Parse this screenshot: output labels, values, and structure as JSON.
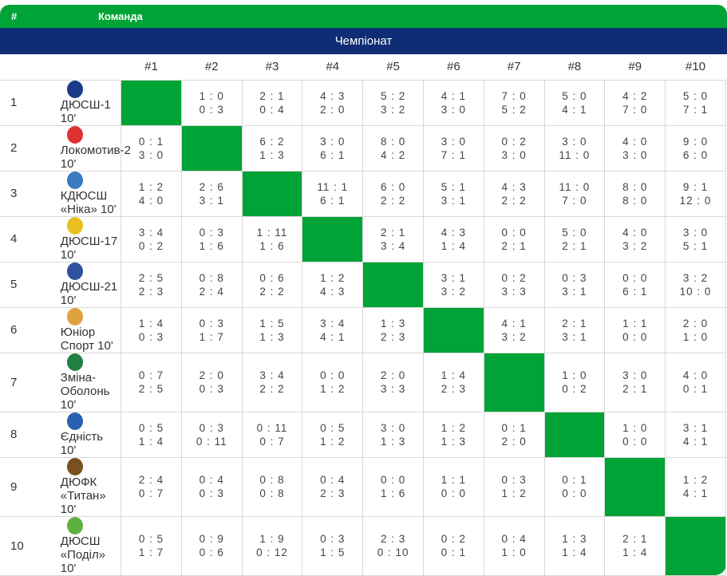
{
  "header": {
    "hash": "#",
    "team": "Команда"
  },
  "section": "Чемпіонат",
  "columns": [
    "#1",
    "#2",
    "#3",
    "#4",
    "#5",
    "#6",
    "#7",
    "#8",
    "#9",
    "#10"
  ],
  "colors": {
    "green": "#00a335",
    "navy": "#0e2d74"
  },
  "rows": [
    {
      "pos": "1",
      "team": "ДЮСШ-1 10'",
      "logo": "#1a3a8a",
      "scores": [
        null,
        [
          "1 : 0",
          "0 : 3"
        ],
        [
          "2 : 1",
          "0 : 4"
        ],
        [
          "4 : 3",
          "2 : 0"
        ],
        [
          "5 : 2",
          "3 : 2"
        ],
        [
          "4 : 1",
          "3 : 0"
        ],
        [
          "7 : 0",
          "5 : 2"
        ],
        [
          "5 : 0",
          "4 : 1"
        ],
        [
          "4 : 2",
          "7 : 0"
        ],
        [
          "5 : 0",
          "7 : 1"
        ]
      ]
    },
    {
      "pos": "2",
      "team": "Локомотив-2 10'",
      "logo": "#e03030",
      "scores": [
        [
          "0 : 1",
          "3 : 0"
        ],
        null,
        [
          "6 : 2",
          "1 : 3"
        ],
        [
          "3 : 0",
          "6 : 1"
        ],
        [
          "8 : 0",
          "4 : 2"
        ],
        [
          "3 : 0",
          "7 : 1"
        ],
        [
          "0 : 2",
          "3 : 0"
        ],
        [
          "3 : 0",
          "11 : 0"
        ],
        [
          "4 : 0",
          "3 : 0"
        ],
        [
          "9 : 0",
          "6 : 0"
        ]
      ]
    },
    {
      "pos": "3",
      "team": "КДЮСШ «Ніка» 10'",
      "logo": "#3a7ac0",
      "scores": [
        [
          "1 : 2",
          "4 : 0"
        ],
        [
          "2 : 6",
          "3 : 1"
        ],
        null,
        [
          "11 : 1",
          "6 : 1"
        ],
        [
          "6 : 0",
          "2 : 2"
        ],
        [
          "5 : 1",
          "3 : 1"
        ],
        [
          "4 : 3",
          "2 : 2"
        ],
        [
          "11 : 0",
          "7 : 0"
        ],
        [
          "8 : 0",
          "8 : 0"
        ],
        [
          "9 : 1",
          "12 : 0"
        ]
      ]
    },
    {
      "pos": "4",
      "team": "ДЮСШ-17 10'",
      "logo": "#e8c020",
      "scores": [
        [
          "3 : 4",
          "0 : 2"
        ],
        [
          "0 : 3",
          "1 : 6"
        ],
        [
          "1 : 11",
          "1 : 6"
        ],
        null,
        [
          "2 : 1",
          "3 : 4"
        ],
        [
          "4 : 3",
          "1 : 4"
        ],
        [
          "0 : 0",
          "2 : 1"
        ],
        [
          "5 : 0",
          "2 : 1"
        ],
        [
          "4 : 0",
          "3 : 2"
        ],
        [
          "3 : 0",
          "5 : 1"
        ]
      ]
    },
    {
      "pos": "5",
      "team": "ДЮСШ-21 10'",
      "logo": "#3050a0",
      "scores": [
        [
          "2 : 5",
          "2 : 3"
        ],
        [
          "0 : 8",
          "2 : 4"
        ],
        [
          "0 : 6",
          "2 : 2"
        ],
        [
          "1 : 2",
          "4 : 3"
        ],
        null,
        [
          "3 : 1",
          "3 : 2"
        ],
        [
          "0 : 2",
          "3 : 3"
        ],
        [
          "0 : 3",
          "3 : 1"
        ],
        [
          "0 : 0",
          "6 : 1"
        ],
        [
          "3 : 2",
          "10 : 0"
        ]
      ]
    },
    {
      "pos": "6",
      "team": "Юніор Спорт 10'",
      "logo": "#e0a040",
      "scores": [
        [
          "1 : 4",
          "0 : 3"
        ],
        [
          "0 : 3",
          "1 : 7"
        ],
        [
          "1 : 5",
          "1 : 3"
        ],
        [
          "3 : 4",
          "4 : 1"
        ],
        [
          "1 : 3",
          "2 : 3"
        ],
        null,
        [
          "4 : 1",
          "3 : 2"
        ],
        [
          "2 : 1",
          "3 : 1"
        ],
        [
          "1 : 1",
          "0 : 0"
        ],
        [
          "2 : 0",
          "1 : 0"
        ]
      ]
    },
    {
      "pos": "7",
      "team": "Зміна-Оболонь 10'",
      "logo": "#208040",
      "scores": [
        [
          "0 : 7",
          "2 : 5"
        ],
        [
          "2 : 0",
          "0 : 3"
        ],
        [
          "3 : 4",
          "2 : 2"
        ],
        [
          "0 : 0",
          "1 : 2"
        ],
        [
          "2 : 0",
          "3 : 3"
        ],
        [
          "1 : 4",
          "2 : 3"
        ],
        null,
        [
          "1 : 0",
          "0 : 2"
        ],
        [
          "3 : 0",
          "2 : 1"
        ],
        [
          "4 : 0",
          "0 : 1"
        ]
      ]
    },
    {
      "pos": "8",
      "team": "Єдність 10'",
      "logo": "#2a60b0",
      "scores": [
        [
          "0 : 5",
          "1 : 4"
        ],
        [
          "0 : 3",
          "0 : 11"
        ],
        [
          "0 : 11",
          "0 : 7"
        ],
        [
          "0 : 5",
          "1 : 2"
        ],
        [
          "3 : 0",
          "1 : 3"
        ],
        [
          "1 : 2",
          "1 : 3"
        ],
        [
          "0 : 1",
          "2 : 0"
        ],
        null,
        [
          "1 : 0",
          "0 : 0"
        ],
        [
          "3 : 1",
          "4 : 1"
        ]
      ]
    },
    {
      "pos": "9",
      "team": "ДЮФК «Титан» 10'",
      "logo": "#7a5020",
      "scores": [
        [
          "2 : 4",
          "0 : 7"
        ],
        [
          "0 : 4",
          "0 : 3"
        ],
        [
          "0 : 8",
          "0 : 8"
        ],
        [
          "0 : 4",
          "2 : 3"
        ],
        [
          "0 : 0",
          "1 : 6"
        ],
        [
          "1 : 1",
          "0 : 0"
        ],
        [
          "0 : 3",
          "1 : 2"
        ],
        [
          "0 : 1",
          "0 : 0"
        ],
        null,
        [
          "1 : 2",
          "4 : 1"
        ]
      ]
    },
    {
      "pos": "10",
      "team": "ДЮСШ «Поділ» 10'",
      "logo": "#60b040",
      "scores": [
        [
          "0 : 5",
          "1 : 7"
        ],
        [
          "0 : 9",
          "0 : 6"
        ],
        [
          "1 : 9",
          "0 : 12"
        ],
        [
          "0 : 3",
          "1 : 5"
        ],
        [
          "2 : 3",
          "0 : 10"
        ],
        [
          "0 : 2",
          "0 : 1"
        ],
        [
          "0 : 4",
          "1 : 0"
        ],
        [
          "1 : 3",
          "1 : 4"
        ],
        [
          "2 : 1",
          "1 : 4"
        ],
        null
      ]
    }
  ]
}
